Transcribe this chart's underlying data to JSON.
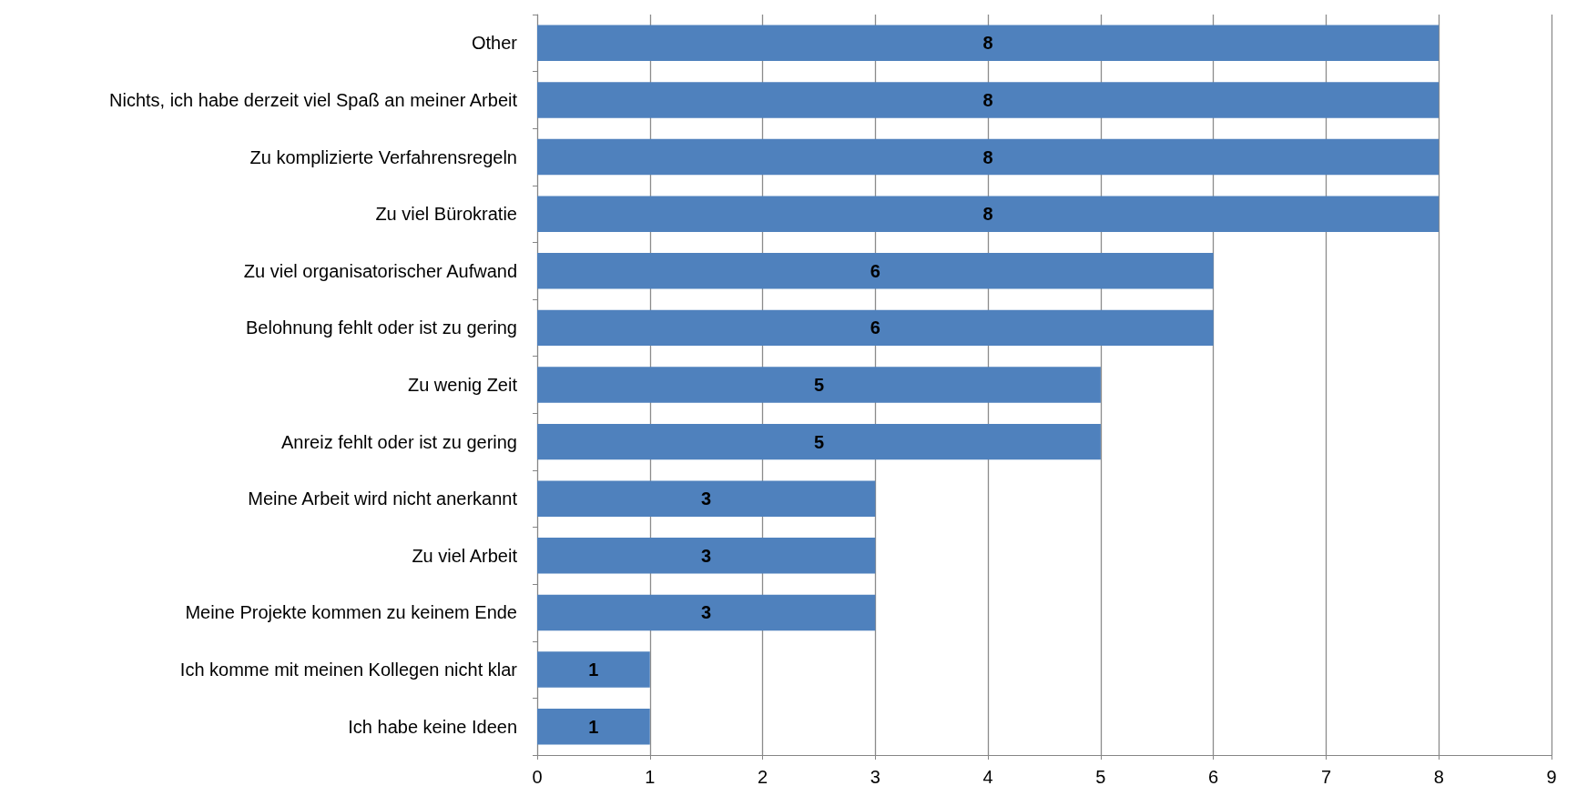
{
  "chart_data": {
    "type": "bar",
    "orientation": "horizontal",
    "categories": [
      "Other",
      "Nichts, ich habe derzeit viel Spaß an meiner Arbeit",
      "Zu komplizierte Verfahrensregeln",
      "Zu viel Bürokratie",
      "Zu viel organisatorischer Aufwand",
      "Belohnung fehlt oder ist zu gering",
      "Zu wenig Zeit",
      "Anreiz fehlt oder ist zu gering",
      "Meine Arbeit wird nicht anerkannt",
      "Zu viel Arbeit",
      "Meine Projekte kommen zu keinem Ende",
      "Ich komme mit meinen Kollegen nicht klar",
      "Ich habe keine Ideen"
    ],
    "values": [
      8,
      8,
      8,
      8,
      6,
      6,
      5,
      5,
      3,
      3,
      3,
      1,
      1
    ],
    "color": "#4f81bd",
    "xlim": [
      0,
      9
    ],
    "xticks": [
      0,
      1,
      2,
      3,
      4,
      5,
      6,
      7,
      8,
      9
    ],
    "grid": "x",
    "data_labels": true
  }
}
